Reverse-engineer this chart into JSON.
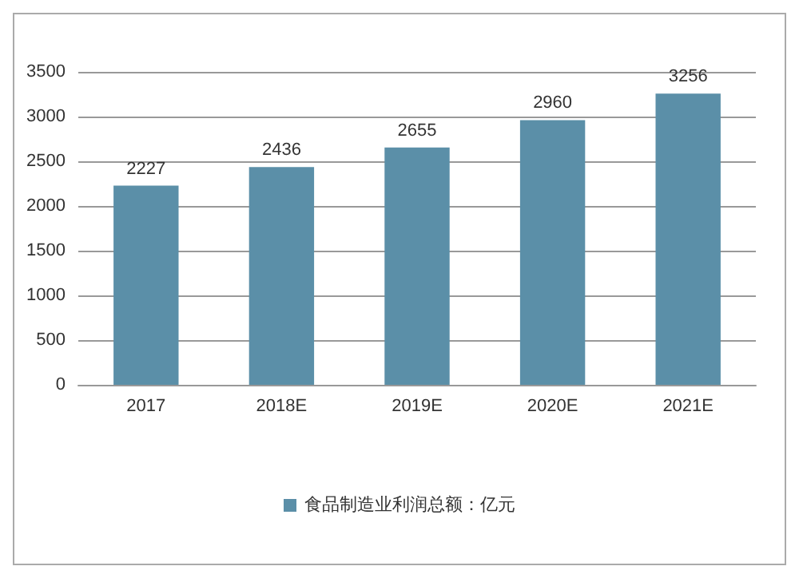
{
  "chart_data": {
    "type": "bar",
    "categories": [
      "2017",
      "2018E",
      "2019E",
      "2020E",
      "2021E"
    ],
    "series": [
      {
        "name": "食品制造业利润总额：亿元",
        "color": "#5b8fa8",
        "values": [
          2227,
          2436,
          2655,
          2960,
          3256
        ]
      }
    ],
    "ylim": [
      0,
      3500
    ],
    "yticks": [
      0,
      500,
      1000,
      1500,
      2000,
      2500,
      3000,
      3500
    ],
    "grid": "y",
    "legend": "bottom",
    "data_labels": true
  }
}
